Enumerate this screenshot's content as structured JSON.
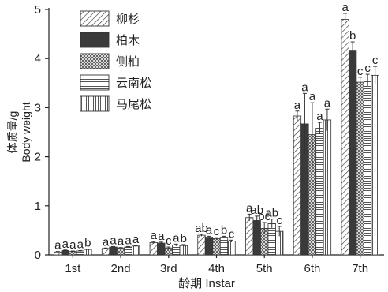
{
  "chart_data": {
    "type": "bar",
    "categories": [
      "1st",
      "2nd",
      "3rd",
      "4th",
      "5th",
      "6th",
      "7th"
    ],
    "xlabel": "龄期 Instar",
    "ylabel_lines": [
      "体质量/g",
      "Body weight"
    ],
    "ylim": [
      0,
      5
    ],
    "yticks": [
      "0",
      "1",
      "2",
      "3",
      "4",
      "5"
    ],
    "legend_position": "top-left",
    "series": [
      {
        "name": "柳杉",
        "pattern": "diag",
        "color": "#333333",
        "values": [
          0.06,
          0.13,
          0.25,
          0.4,
          0.76,
          2.83,
          4.8
        ],
        "errors": [
          0.01,
          0.01,
          0.02,
          0.02,
          0.07,
          0.1,
          0.12
        ],
        "letters": [
          "a",
          "a",
          "a",
          "ab",
          "a",
          "a",
          "a"
        ]
      },
      {
        "name": "柏木",
        "pattern": "solid",
        "color": "#3a3a3a",
        "values": [
          0.09,
          0.16,
          0.24,
          0.36,
          0.7,
          2.67,
          4.17
        ],
        "errors": [
          0.01,
          0.01,
          0.02,
          0.02,
          0.09,
          0.62,
          0.17
        ],
        "letters": [
          "a",
          "a",
          "a",
          "a",
          "ab",
          "a",
          "b"
        ]
      },
      {
        "name": "侧柏",
        "pattern": "cross",
        "color": "#333333",
        "values": [
          0.07,
          0.14,
          0.14,
          0.33,
          0.54,
          2.45,
          3.52
        ],
        "errors": [
          0.01,
          0.01,
          0.02,
          0.02,
          0.12,
          0.65,
          0.1
        ],
        "letters": [
          "a",
          "a",
          "c",
          "c",
          "bc",
          "a",
          "c"
        ]
      },
      {
        "name": "云南松",
        "pattern": "hlines",
        "color": "#333333",
        "values": [
          0.08,
          0.16,
          0.2,
          0.36,
          0.64,
          2.58,
          3.56
        ],
        "errors": [
          0.01,
          0.01,
          0.02,
          0.02,
          0.09,
          0.12,
          0.12
        ],
        "letters": [
          "a",
          "a",
          "a",
          "b",
          "ab",
          "a",
          "c"
        ]
      },
      {
        "name": "马尾松",
        "pattern": "vlines",
        "color": "#333333",
        "values": [
          0.11,
          0.18,
          0.19,
          0.28,
          0.48,
          2.75,
          3.66
        ],
        "errors": [
          0.01,
          0.01,
          0.02,
          0.02,
          0.1,
          0.22,
          0.18
        ],
        "letters": [
          "b",
          "a",
          "b",
          "c",
          "c",
          "a",
          "c"
        ]
      }
    ]
  }
}
